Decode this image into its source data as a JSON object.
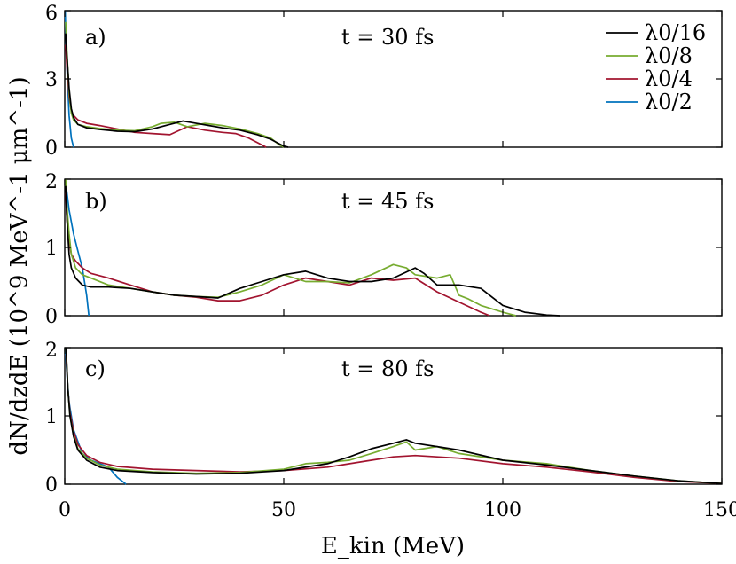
{
  "chart_data": {
    "type": "line",
    "xlabel": "E_kin (MeV)",
    "ylabel": "dN/dzdE (10^9 MeV^-1 μm^-1)",
    "xlim": [
      0,
      150
    ],
    "xticks": [
      "0",
      "50",
      "100",
      "150"
    ],
    "legend": {
      "placement": "top-right",
      "entries": [
        {
          "label": "λ0/16",
          "color": "#000000"
        },
        {
          "label": "λ0/8",
          "color": "#77ac30"
        },
        {
          "label": "λ0/4",
          "color": "#a2142f"
        },
        {
          "label": "λ0/2",
          "color": "#0072bd"
        }
      ]
    },
    "panels": [
      {
        "label": "a)",
        "time": "t = 30 fs",
        "ylim": [
          0,
          6
        ],
        "yticks": [
          "0",
          "3",
          "6"
        ],
        "series": [
          {
            "name": "λ0/16",
            "color": "#000000",
            "x": [
              0.2,
              0.5,
              1,
              1.5,
              2,
              3,
              5,
              8,
              12,
              16,
              20,
              24,
              27,
              30,
              33,
              36,
              40,
              44,
              47,
              49,
              50,
              51
            ],
            "y": [
              5.0,
              4.0,
              2.6,
              1.7,
              1.3,
              1.0,
              0.85,
              0.78,
              0.7,
              0.68,
              0.8,
              1.0,
              1.15,
              1.05,
              0.95,
              0.85,
              0.75,
              0.55,
              0.35,
              0.15,
              0.05,
              0.0
            ]
          },
          {
            "name": "λ0/8",
            "color": "#77ac30",
            "x": [
              0.2,
              0.5,
              1,
              1.5,
              2,
              3,
              5,
              8,
              12,
              16,
              20,
              22,
              25,
              28,
              32,
              36,
              40,
              44,
              47,
              49,
              50
            ],
            "y": [
              5.5,
              4.2,
              2.4,
              1.5,
              1.2,
              1.0,
              0.9,
              0.82,
              0.75,
              0.72,
              0.9,
              1.05,
              1.1,
              0.9,
              1.05,
              0.95,
              0.8,
              0.6,
              0.4,
              0.1,
              0.0
            ]
          },
          {
            "name": "λ0/4",
            "color": "#a2142f",
            "x": [
              0.2,
              0.5,
              1,
              1.5,
              2,
              3,
              5,
              8,
              12,
              16,
              20,
              24,
              28,
              32,
              36,
              39,
              42,
              44,
              46
            ],
            "y": [
              4.5,
              3.5,
              2.2,
              1.6,
              1.4,
              1.2,
              1.05,
              0.95,
              0.8,
              0.65,
              0.6,
              0.55,
              0.9,
              0.75,
              0.65,
              0.6,
              0.4,
              0.2,
              0.0
            ]
          },
          {
            "name": "λ0/2",
            "color": "#0072bd",
            "x": [
              0.1,
              0.3,
              0.6,
              1,
              1.5,
              2
            ],
            "y": [
              6.0,
              4.5,
              3.0,
              1.4,
              0.4,
              0.0
            ]
          }
        ]
      },
      {
        "label": "b)",
        "time": "t = 45 fs",
        "ylim": [
          0,
          2
        ],
        "yticks": [
          "0",
          "1",
          "2"
        ],
        "series": [
          {
            "name": "λ0/16",
            "color": "#000000",
            "x": [
              0.2,
              0.5,
              1,
              1.5,
              2.5,
              4,
              6,
              10,
              15,
              20,
              25,
              30,
              35,
              40,
              45,
              50,
              55,
              60,
              65,
              70,
              75,
              80,
              82,
              85,
              90,
              95,
              97,
              100,
              105,
              110,
              113
            ],
            "y": [
              1.9,
              1.4,
              0.9,
              0.7,
              0.55,
              0.45,
              0.42,
              0.42,
              0.4,
              0.35,
              0.3,
              0.28,
              0.26,
              0.4,
              0.5,
              0.6,
              0.65,
              0.55,
              0.5,
              0.5,
              0.55,
              0.7,
              0.62,
              0.45,
              0.45,
              0.4,
              0.3,
              0.15,
              0.05,
              0.01,
              0.0
            ]
          },
          {
            "name": "λ0/8",
            "color": "#77ac30",
            "x": [
              0.2,
              0.5,
              1,
              1.5,
              2.5,
              4,
              6,
              10,
              15,
              20,
              25,
              30,
              35,
              40,
              45,
              50,
              55,
              60,
              65,
              70,
              75,
              78,
              80,
              85,
              88,
              90,
              92,
              95,
              100,
              103
            ],
            "y": [
              2.0,
              1.6,
              1.2,
              0.9,
              0.7,
              0.6,
              0.55,
              0.45,
              0.4,
              0.35,
              0.3,
              0.28,
              0.27,
              0.35,
              0.45,
              0.6,
              0.5,
              0.5,
              0.48,
              0.6,
              0.75,
              0.7,
              0.6,
              0.55,
              0.6,
              0.3,
              0.25,
              0.15,
              0.05,
              0.0
            ]
          },
          {
            "name": "λ0/4",
            "color": "#a2142f",
            "x": [
              0.2,
              0.5,
              1,
              1.5,
              2.5,
              4,
              6,
              10,
              15,
              20,
              25,
              30,
              35,
              40,
              45,
              50,
              55,
              60,
              65,
              70,
              75,
              80,
              85,
              90,
              95,
              97
            ],
            "y": [
              1.8,
              1.4,
              1.1,
              0.9,
              0.8,
              0.7,
              0.62,
              0.55,
              0.45,
              0.35,
              0.3,
              0.27,
              0.22,
              0.22,
              0.3,
              0.45,
              0.55,
              0.5,
              0.45,
              0.55,
              0.52,
              0.55,
              0.35,
              0.2,
              0.05,
              0.0
            ]
          },
          {
            "name": "λ0/2",
            "color": "#0072bd",
            "x": [
              0.1,
              0.5,
              1,
              2,
              3,
              4,
              5,
              5.5
            ],
            "y": [
              2.0,
              1.8,
              1.55,
              1.2,
              0.95,
              0.7,
              0.3,
              0.0
            ]
          }
        ]
      },
      {
        "label": "c)",
        "time": "t = 80 fs",
        "ylim": [
          0,
          2
        ],
        "yticks": [
          "0",
          "1",
          "2"
        ],
        "series": [
          {
            "name": "λ0/16",
            "color": "#000000",
            "x": [
              0.3,
              0.7,
              1.2,
              2,
              3,
              5,
              8,
              12,
              20,
              30,
              40,
              50,
              60,
              65,
              70,
              75,
              78,
              80,
              85,
              90,
              100,
              110,
              120,
              130,
              140,
              150
            ],
            "y": [
              2.0,
              1.4,
              1.0,
              0.7,
              0.5,
              0.35,
              0.25,
              0.2,
              0.17,
              0.15,
              0.16,
              0.2,
              0.3,
              0.4,
              0.52,
              0.6,
              0.65,
              0.6,
              0.55,
              0.5,
              0.35,
              0.28,
              0.2,
              0.12,
              0.05,
              0.01
            ]
          },
          {
            "name": "λ0/8",
            "color": "#77ac30",
            "x": [
              0.3,
              0.7,
              1.2,
              2,
              3,
              5,
              8,
              12,
              20,
              30,
              40,
              50,
              55,
              60,
              65,
              70,
              75,
              78,
              80,
              85,
              90,
              100,
              110,
              120,
              130,
              140,
              150
            ],
            "y": [
              2.0,
              1.4,
              1.0,
              0.72,
              0.52,
              0.38,
              0.28,
              0.22,
              0.18,
              0.16,
              0.17,
              0.22,
              0.3,
              0.32,
              0.35,
              0.45,
              0.55,
              0.62,
              0.5,
              0.55,
              0.45,
              0.35,
              0.3,
              0.2,
              0.12,
              0.05,
              0.01
            ]
          },
          {
            "name": "λ0/4",
            "color": "#a2142f",
            "x": [
              0.3,
              0.7,
              1.2,
              2,
              3,
              5,
              8,
              12,
              20,
              30,
              40,
              50,
              60,
              70,
              75,
              80,
              85,
              90,
              100,
              110,
              120,
              130,
              140,
              150
            ],
            "y": [
              1.9,
              1.4,
              1.05,
              0.78,
              0.58,
              0.42,
              0.32,
              0.26,
              0.22,
              0.2,
              0.18,
              0.2,
              0.25,
              0.35,
              0.4,
              0.42,
              0.4,
              0.38,
              0.3,
              0.25,
              0.18,
              0.1,
              0.04,
              0.01
            ]
          },
          {
            "name": "λ0/2",
            "color": "#0072bd",
            "x": [
              0.1,
              0.5,
              1,
              2,
              4,
              6,
              8,
              10,
              12,
              14
            ],
            "y": [
              2.0,
              1.6,
              1.2,
              0.8,
              0.45,
              0.35,
              0.3,
              0.25,
              0.1,
              0.0
            ]
          }
        ]
      }
    ]
  }
}
